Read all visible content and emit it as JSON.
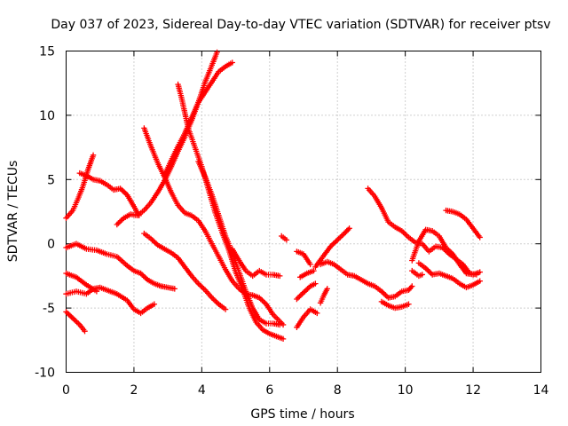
{
  "chart_data": {
    "type": "scatter",
    "title": "Day 037 of 2023, Sidereal Day-to-day VTEC variation (SDTVAR) for receiver ptsv",
    "xlabel": "GPS time / hours",
    "ylabel": "SDTVAR / TECUs",
    "xlim": [
      0,
      14
    ],
    "ylim": [
      -10,
      15
    ],
    "x_ticks": [
      0,
      2,
      4,
      6,
      8,
      10,
      12,
      14
    ],
    "y_ticks": [
      -10,
      -5,
      0,
      5,
      10,
      15
    ],
    "x_tick_labels": [
      "0",
      "2",
      "4",
      "6",
      "8",
      "10",
      "12",
      "14"
    ],
    "y_tick_labels": [
      "-10",
      "-5",
      "0",
      "5",
      "10",
      "15"
    ],
    "grid": true,
    "marker": "+",
    "color": "#ff0000",
    "series": [
      {
        "name": "track-1",
        "points": [
          [
            0.0,
            2.0
          ],
          [
            0.2,
            2.6
          ],
          [
            0.35,
            3.5
          ],
          [
            0.5,
            4.5
          ],
          [
            0.65,
            5.8
          ],
          [
            0.8,
            6.9
          ]
        ]
      },
      {
        "name": "track-2",
        "points": [
          [
            0.4,
            5.5
          ],
          [
            0.6,
            5.3
          ],
          [
            0.8,
            5.0
          ],
          [
            1.0,
            4.9
          ],
          [
            1.2,
            4.6
          ],
          [
            1.4,
            4.2
          ],
          [
            1.6,
            4.3
          ],
          [
            1.8,
            3.8
          ],
          [
            2.0,
            2.9
          ],
          [
            2.15,
            2.2
          ]
        ]
      },
      {
        "name": "track-3",
        "points": [
          [
            1.5,
            1.5
          ],
          [
            1.7,
            2.0
          ],
          [
            1.9,
            2.3
          ],
          [
            2.1,
            2.2
          ],
          [
            2.3,
            2.6
          ],
          [
            2.5,
            3.2
          ],
          [
            2.7,
            4.0
          ],
          [
            2.9,
            4.9
          ],
          [
            3.1,
            6.0
          ],
          [
            3.3,
            7.2
          ],
          [
            3.5,
            8.3
          ],
          [
            3.7,
            9.6
          ],
          [
            3.9,
            11.0
          ],
          [
            4.1,
            12.6
          ],
          [
            4.3,
            13.9
          ],
          [
            4.45,
            14.9
          ]
        ]
      },
      {
        "name": "track-4",
        "points": [
          [
            2.3,
            9.0
          ],
          [
            2.5,
            7.6
          ],
          [
            2.7,
            6.3
          ],
          [
            2.9,
            5.2
          ],
          [
            3.1,
            4.0
          ],
          [
            3.3,
            3.0
          ],
          [
            3.5,
            2.4
          ],
          [
            3.7,
            2.2
          ],
          [
            3.9,
            1.8
          ],
          [
            4.1,
            1.0
          ],
          [
            4.3,
            0.0
          ],
          [
            4.5,
            -1.0
          ],
          [
            4.7,
            -2.0
          ],
          [
            4.9,
            -2.9
          ],
          [
            5.1,
            -3.5
          ],
          [
            5.3,
            -3.9
          ],
          [
            5.5,
            -4.0
          ],
          [
            5.7,
            -4.2
          ],
          [
            5.9,
            -4.7
          ],
          [
            6.1,
            -5.5
          ],
          [
            6.4,
            -6.3
          ]
        ]
      },
      {
        "name": "track-5",
        "points": [
          [
            3.3,
            12.4
          ],
          [
            3.4,
            11.4
          ],
          [
            3.5,
            10.2
          ],
          [
            3.6,
            9.0
          ],
          [
            3.8,
            7.5
          ],
          [
            4.0,
            6.0
          ],
          [
            4.2,
            4.2
          ],
          [
            4.4,
            2.4
          ],
          [
            4.6,
            0.9
          ],
          [
            4.8,
            -0.5
          ],
          [
            5.0,
            -2.2
          ],
          [
            5.2,
            -3.5
          ],
          [
            5.4,
            -5.0
          ],
          [
            5.6,
            -6.1
          ],
          [
            5.8,
            -6.7
          ],
          [
            6.0,
            -7.0
          ],
          [
            6.2,
            -7.2
          ],
          [
            6.4,
            -7.4
          ]
        ]
      },
      {
        "name": "track-6",
        "points": [
          [
            2.9,
            5.3
          ],
          [
            3.1,
            6.5
          ],
          [
            3.3,
            7.6
          ],
          [
            3.5,
            8.6
          ],
          [
            3.7,
            9.8
          ],
          [
            3.9,
            11.0
          ],
          [
            4.1,
            11.8
          ],
          [
            4.3,
            12.6
          ],
          [
            4.5,
            13.4
          ],
          [
            4.7,
            13.8
          ],
          [
            4.9,
            14.1
          ]
        ]
      },
      {
        "name": "track-7",
        "points": [
          [
            3.9,
            6.4
          ],
          [
            4.1,
            5.2
          ],
          [
            4.3,
            3.8
          ],
          [
            4.5,
            2.2
          ],
          [
            4.7,
            0.6
          ],
          [
            4.9,
            -0.7
          ],
          [
            5.1,
            -2.2
          ],
          [
            5.3,
            -3.7
          ],
          [
            5.5,
            -5.0
          ],
          [
            5.7,
            -5.9
          ],
          [
            5.9,
            -6.2
          ],
          [
            6.1,
            -6.2
          ],
          [
            6.3,
            -6.3
          ]
        ]
      },
      {
        "name": "track-8",
        "points": [
          [
            0.0,
            -0.3
          ],
          [
            0.3,
            0.0
          ],
          [
            0.6,
            -0.4
          ],
          [
            0.9,
            -0.5
          ],
          [
            1.2,
            -0.8
          ],
          [
            1.5,
            -1.0
          ],
          [
            1.8,
            -1.7
          ],
          [
            2.0,
            -2.1
          ],
          [
            2.2,
            -2.3
          ],
          [
            2.4,
            -2.8
          ],
          [
            2.6,
            -3.1
          ],
          [
            2.8,
            -3.3
          ],
          [
            3.0,
            -3.4
          ],
          [
            3.2,
            -3.5
          ]
        ]
      },
      {
        "name": "track-9",
        "points": [
          [
            0.0,
            -2.3
          ],
          [
            0.3,
            -2.6
          ],
          [
            0.6,
            -3.2
          ],
          [
            0.9,
            -3.7
          ]
        ]
      },
      {
        "name": "track-10",
        "points": [
          [
            0.0,
            -3.9
          ],
          [
            0.3,
            -3.7
          ],
          [
            0.6,
            -3.9
          ],
          [
            0.8,
            -3.5
          ],
          [
            1.0,
            -3.4
          ],
          [
            1.2,
            -3.6
          ],
          [
            1.5,
            -3.9
          ],
          [
            1.8,
            -4.4
          ],
          [
            2.0,
            -5.1
          ],
          [
            2.2,
            -5.4
          ],
          [
            2.4,
            -5.0
          ],
          [
            2.6,
            -4.7
          ]
        ]
      },
      {
        "name": "track-11",
        "points": [
          [
            0.0,
            -5.3
          ],
          [
            0.2,
            -5.8
          ],
          [
            0.4,
            -6.3
          ],
          [
            0.55,
            -6.8
          ]
        ]
      },
      {
        "name": "track-12",
        "points": [
          [
            2.3,
            0.8
          ],
          [
            2.5,
            0.4
          ],
          [
            2.7,
            -0.1
          ],
          [
            2.9,
            -0.4
          ],
          [
            3.1,
            -0.7
          ],
          [
            3.3,
            -1.1
          ],
          [
            3.5,
            -1.8
          ],
          [
            3.7,
            -2.5
          ],
          [
            3.9,
            -3.1
          ],
          [
            4.1,
            -3.6
          ],
          [
            4.3,
            -4.2
          ],
          [
            4.5,
            -4.7
          ],
          [
            4.7,
            -5.1
          ]
        ]
      },
      {
        "name": "track-13",
        "points": [
          [
            4.9,
            -0.4
          ],
          [
            5.1,
            -1.3
          ],
          [
            5.3,
            -2.1
          ],
          [
            5.5,
            -2.5
          ],
          [
            5.7,
            -2.1
          ],
          [
            5.9,
            -2.4
          ],
          [
            6.1,
            -2.4
          ],
          [
            6.3,
            -2.5
          ]
        ]
      },
      {
        "name": "track-14",
        "points": [
          [
            6.35,
            0.6
          ],
          [
            6.5,
            0.3
          ]
        ]
      },
      {
        "name": "track-15",
        "points": [
          [
            6.8,
            -0.6
          ],
          [
            7.0,
            -0.8
          ],
          [
            7.2,
            -1.6
          ]
        ]
      },
      {
        "name": "track-16",
        "points": [
          [
            6.9,
            -2.6
          ],
          [
            7.1,
            -2.3
          ],
          [
            7.3,
            -2.1
          ]
        ]
      },
      {
        "name": "track-17",
        "points": [
          [
            6.8,
            -4.3
          ],
          [
            7.0,
            -3.8
          ],
          [
            7.2,
            -3.3
          ],
          [
            7.35,
            -3.1
          ]
        ]
      },
      {
        "name": "track-18",
        "points": [
          [
            6.8,
            -6.5
          ],
          [
            7.0,
            -5.7
          ],
          [
            7.2,
            -5.1
          ],
          [
            7.4,
            -5.4
          ]
        ]
      },
      {
        "name": "track-19",
        "points": [
          [
            7.5,
            -4.6
          ],
          [
            7.6,
            -4.0
          ],
          [
            7.7,
            -3.5
          ]
        ]
      },
      {
        "name": "track-20",
        "points": [
          [
            7.35,
            -1.8
          ],
          [
            7.6,
            -0.9
          ],
          [
            7.8,
            -0.2
          ],
          [
            8.0,
            0.3
          ],
          [
            8.2,
            0.8
          ],
          [
            8.35,
            1.2
          ]
        ]
      },
      {
        "name": "track-21",
        "points": [
          [
            7.5,
            -1.6
          ],
          [
            7.7,
            -1.4
          ],
          [
            7.9,
            -1.6
          ],
          [
            8.1,
            -2.0
          ],
          [
            8.3,
            -2.4
          ],
          [
            8.5,
            -2.5
          ],
          [
            8.7,
            -2.8
          ],
          [
            8.9,
            -3.1
          ],
          [
            9.1,
            -3.3
          ],
          [
            9.3,
            -3.7
          ],
          [
            9.5,
            -4.2
          ],
          [
            9.7,
            -4.1
          ],
          [
            9.9,
            -3.7
          ],
          [
            10.1,
            -3.6
          ],
          [
            10.2,
            -3.3
          ]
        ]
      },
      {
        "name": "track-22",
        "points": [
          [
            8.9,
            4.3
          ],
          [
            9.1,
            3.7
          ],
          [
            9.3,
            2.8
          ],
          [
            9.5,
            1.7
          ],
          [
            9.7,
            1.3
          ],
          [
            9.9,
            1.0
          ],
          [
            10.1,
            0.5
          ],
          [
            10.3,
            0.1
          ],
          [
            10.5,
            0.0
          ],
          [
            10.7,
            -0.6
          ],
          [
            10.9,
            -0.2
          ],
          [
            11.1,
            -0.3
          ],
          [
            11.3,
            -0.8
          ],
          [
            11.5,
            -1.2
          ],
          [
            11.7,
            -1.6
          ],
          [
            11.9,
            -2.3
          ],
          [
            12.1,
            -2.4
          ]
        ]
      },
      {
        "name": "track-23",
        "points": [
          [
            9.3,
            -4.5
          ],
          [
            9.5,
            -4.8
          ],
          [
            9.7,
            -5.0
          ],
          [
            9.9,
            -4.9
          ],
          [
            10.1,
            -4.7
          ]
        ]
      },
      {
        "name": "track-24",
        "points": [
          [
            10.2,
            -1.3
          ],
          [
            10.4,
            0.2
          ],
          [
            10.6,
            1.1
          ],
          [
            10.8,
            1.0
          ],
          [
            11.0,
            0.6
          ],
          [
            11.2,
            -0.3
          ],
          [
            11.4,
            -0.8
          ],
          [
            11.6,
            -1.6
          ],
          [
            11.8,
            -2.3
          ],
          [
            12.0,
            -2.4
          ],
          [
            12.2,
            -2.2
          ]
        ]
      },
      {
        "name": "track-25",
        "points": [
          [
            10.4,
            -1.5
          ],
          [
            10.6,
            -1.9
          ],
          [
            10.8,
            -2.4
          ],
          [
            11.0,
            -2.3
          ],
          [
            11.2,
            -2.5
          ],
          [
            11.4,
            -2.7
          ],
          [
            11.6,
            -3.1
          ],
          [
            11.8,
            -3.4
          ],
          [
            12.0,
            -3.2
          ],
          [
            12.2,
            -2.9
          ]
        ]
      },
      {
        "name": "track-26",
        "points": [
          [
            10.2,
            -2.1
          ],
          [
            10.4,
            -2.5
          ],
          [
            10.5,
            -2.4
          ]
        ]
      },
      {
        "name": "track-27",
        "points": [
          [
            11.2,
            2.6
          ],
          [
            11.4,
            2.5
          ],
          [
            11.6,
            2.3
          ],
          [
            11.8,
            1.9
          ],
          [
            12.0,
            1.2
          ],
          [
            12.2,
            0.5
          ]
        ]
      }
    ]
  }
}
